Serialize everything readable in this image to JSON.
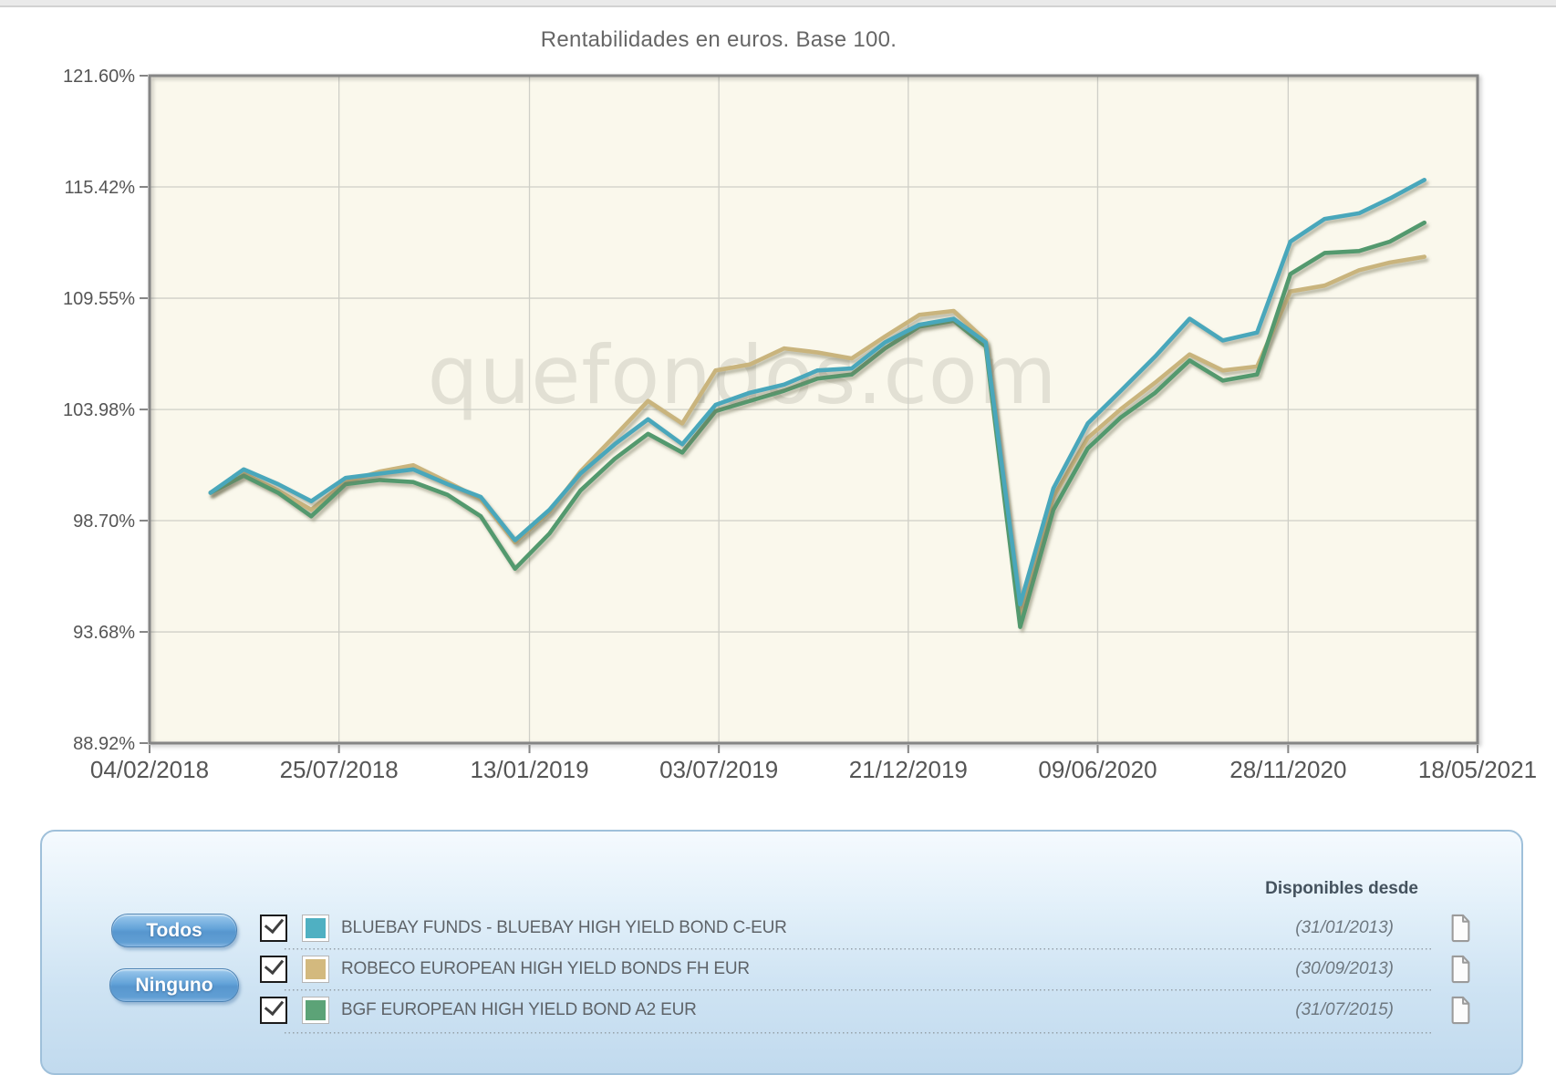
{
  "chart_data": {
    "type": "line",
    "title": "Rentabilidades en euros. Base 100.",
    "watermark": "quefondos.com",
    "scale": "log",
    "ylim": [
      88.92,
      121.6
    ],
    "x_range": [
      "2018-02-04",
      "2021-05-18"
    ],
    "y_ticks": [
      {
        "label": "121.60%",
        "value": 121.6
      },
      {
        "label": "115.42%",
        "value": 115.42
      },
      {
        "label": "109.55%",
        "value": 109.55
      },
      {
        "label": "103.98%",
        "value": 103.98
      },
      {
        "label": "98.70%",
        "value": 98.7
      },
      {
        "label": "93.68%",
        "value": 93.68
      },
      {
        "label": "88.92%",
        "value": 88.92
      }
    ],
    "x_ticks": [
      {
        "label": "04/02/2018",
        "date": "2018-02-04"
      },
      {
        "label": "25/07/2018",
        "date": "2018-07-25"
      },
      {
        "label": "13/01/2019",
        "date": "2019-01-13"
      },
      {
        "label": "03/07/2019",
        "date": "2019-07-03"
      },
      {
        "label": "21/12/2019",
        "date": "2019-12-21"
      },
      {
        "label": "09/06/2020",
        "date": "2020-06-09"
      },
      {
        "label": "28/11/2020",
        "date": "2020-11-28"
      },
      {
        "label": "18/05/2021",
        "date": "2021-05-18"
      }
    ],
    "dates": [
      "2018-03-31",
      "2018-04-30",
      "2018-05-31",
      "2018-06-30",
      "2018-07-31",
      "2018-08-31",
      "2018-09-30",
      "2018-10-31",
      "2018-11-30",
      "2018-12-31",
      "2019-01-31",
      "2019-02-28",
      "2019-03-31",
      "2019-04-30",
      "2019-05-31",
      "2019-06-30",
      "2019-07-31",
      "2019-08-31",
      "2019-09-30",
      "2019-10-31",
      "2019-11-30",
      "2019-12-31",
      "2020-01-31",
      "2020-02-29",
      "2020-03-31",
      "2020-04-30",
      "2020-05-31",
      "2020-06-30",
      "2020-07-31",
      "2020-08-31",
      "2020-09-30",
      "2020-10-31",
      "2020-11-30",
      "2020-12-31",
      "2021-01-31",
      "2021-02-28",
      "2021-03-31"
    ],
    "series": [
      {
        "name": "BLUEBAY FUNDS - BLUEBAY HIGH YIELD BOND C-EUR",
        "color": "#4AA7BB",
        "values": [
          100.0,
          101.1,
          100.4,
          99.6,
          100.7,
          100.9,
          101.1,
          100.4,
          99.8,
          97.8,
          99.2,
          100.9,
          102.3,
          103.5,
          102.3,
          104.2,
          104.8,
          105.2,
          105.9,
          106.0,
          107.3,
          108.2,
          108.5,
          107.3,
          94.9,
          100.2,
          103.3,
          104.9,
          106.6,
          108.5,
          107.4,
          107.8,
          112.5,
          113.7,
          114.0,
          114.8,
          115.8
        ]
      },
      {
        "name": "ROBECO EUROPEAN HIGH YIELD BONDS FH EUR",
        "color": "#C9B47D",
        "values": [
          100.0,
          100.9,
          100.1,
          99.2,
          100.5,
          101.0,
          101.3,
          100.5,
          99.7,
          97.7,
          99.1,
          101.0,
          102.7,
          104.4,
          103.3,
          105.9,
          106.2,
          107.0,
          106.8,
          106.5,
          107.6,
          108.7,
          108.9,
          107.4,
          94.4,
          99.8,
          102.6,
          104.0,
          105.3,
          106.7,
          105.9,
          106.1,
          109.9,
          110.2,
          111.0,
          111.4,
          111.7
        ]
      },
      {
        "name": "BGF EUROPEAN HIGH YIELD BOND A2 EUR",
        "color": "#53996E",
        "values": [
          100.0,
          100.8,
          100.0,
          98.9,
          100.4,
          100.6,
          100.5,
          99.9,
          98.9,
          96.5,
          98.1,
          100.1,
          101.6,
          102.8,
          101.9,
          103.9,
          104.4,
          104.9,
          105.5,
          105.7,
          107.0,
          108.1,
          108.4,
          107.1,
          93.9,
          99.2,
          102.1,
          103.6,
          104.8,
          106.4,
          105.4,
          105.7,
          110.8,
          111.9,
          112.0,
          112.5,
          113.5
        ]
      }
    ],
    "plot_bg": "#FAF8EC",
    "grid_color": "#CFCFC7",
    "axis_color": "#858585",
    "tick_label_color": "#555555",
    "watermark_color": "#6B6B5E"
  },
  "legend_panel": {
    "select_all_label": "Todos",
    "select_none_label": "Ninguno",
    "column_header": "Disponibles desde",
    "funds": [
      {
        "name": "BLUEBAY FUNDS - BLUEBAY HIGH YIELD BOND C-EUR",
        "available_since": "(31/01/2013)",
        "swatch_color": "#4FB0C2",
        "checked": true
      },
      {
        "name": "ROBECO EUROPEAN HIGH YIELD BONDS FH EUR",
        "available_since": "(30/09/2013)",
        "swatch_color": "#D3B97E",
        "checked": true
      },
      {
        "name": "BGF EUROPEAN HIGH YIELD BOND A2 EUR",
        "available_since": "(31/07/2015)",
        "swatch_color": "#5CA377",
        "checked": true
      }
    ]
  }
}
